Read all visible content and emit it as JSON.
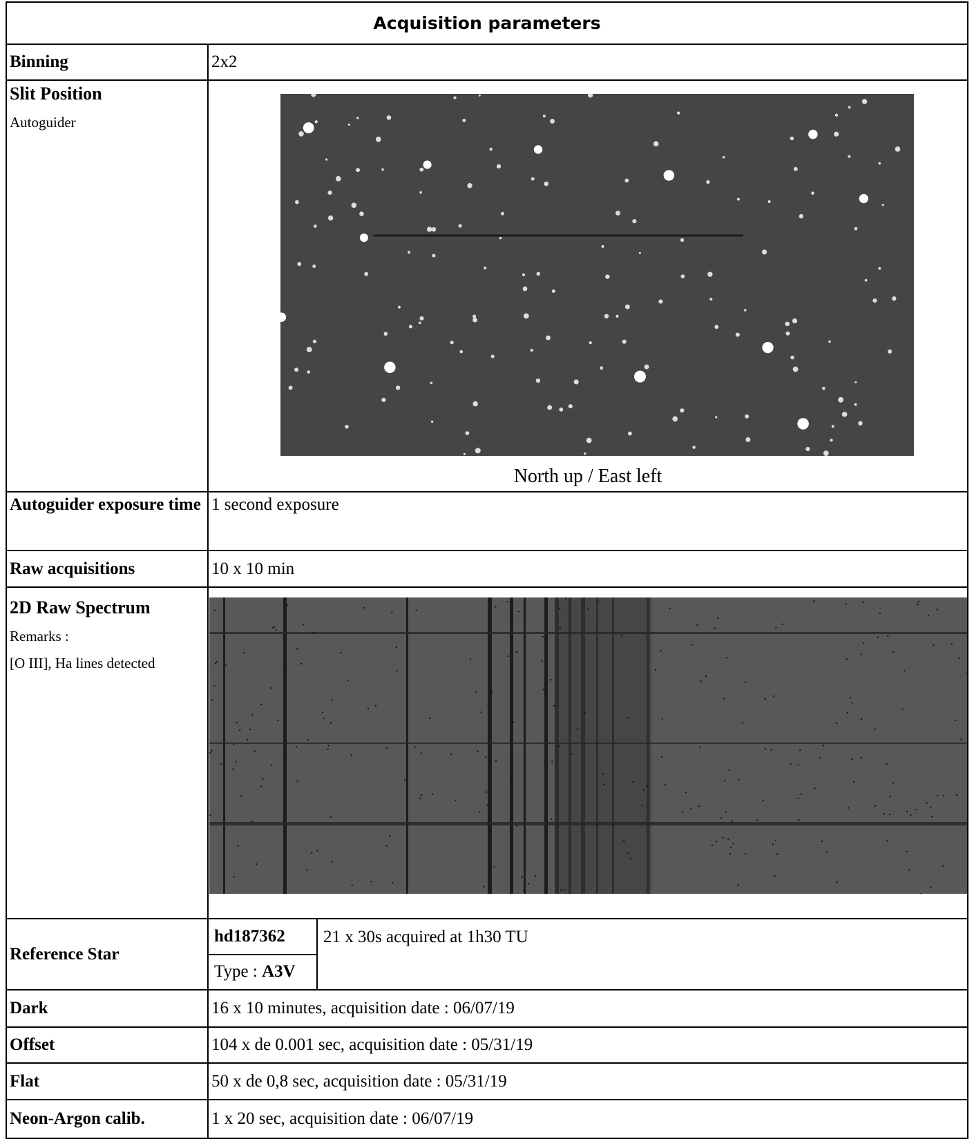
{
  "title": "Acquisition parameters",
  "rows": [
    {
      "label": "Binning",
      "value": "2x2"
    },
    {
      "label": "Slit Position",
      "sublabel": "Autoguider",
      "caption": "North up / East left"
    },
    {
      "label": "Autoguider exposure time",
      "value": "1 second exposure"
    },
    {
      "label": "Raw acquisitions",
      "value": "10 x 10 min"
    },
    {
      "label": "2D Raw Spectrum",
      "remarks_label": "Remarks :",
      "remarks": "[O III], Ha lines detected"
    },
    {
      "label": "Reference Star",
      "star": "hd187362",
      "type_label": "Type :",
      "type": "A3V",
      "value": "21 x 30s acquired at 1h30 TU"
    },
    {
      "label": "Dark",
      "value": "16 x 10 minutes, acquisition date : 06/07/19"
    },
    {
      "label": "Offset",
      "value": "104 x de 0.001 sec, acquisition date : 05/31/19"
    },
    {
      "label": "Flat",
      "value": "50 x de 0,8 sec, acquisition date : 05/31/19"
    },
    {
      "label": "Neon-Argon calib.",
      "value": "1 x 20 sec, acquisition date : 06/07/19"
    }
  ]
}
